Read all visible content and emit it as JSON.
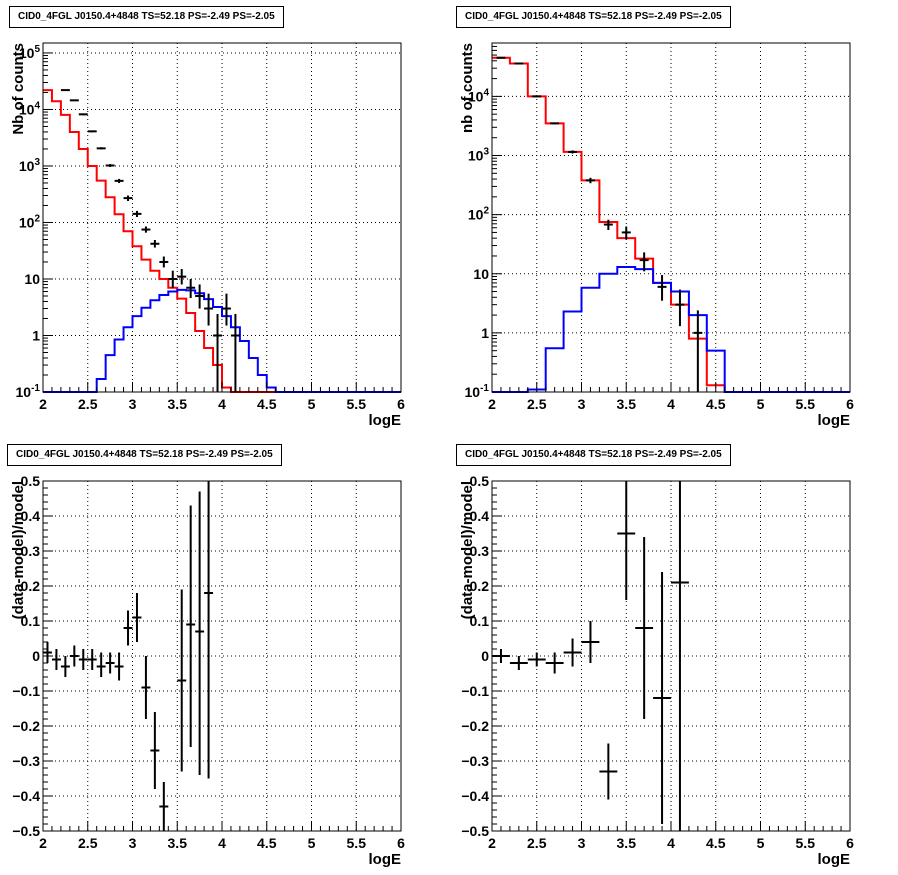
{
  "chart_data": [
    {
      "type": "histogram",
      "title": "CID0_4FGL J0150.4+4848 TS=52.18 PS=-2.49 PS=-2.05",
      "xlabel": "logE",
      "ylabel": "Nb of counts",
      "xlim": [
        2,
        6
      ],
      "ylim": [
        0.1,
        150000
      ],
      "log_y": true,
      "grid": true,
      "x_ticks": [
        "2",
        "2.5",
        "3",
        "3.5",
        "4",
        "4.5",
        "5",
        "5.5",
        "6"
      ],
      "y_ticks": [
        {
          "value": 0.1,
          "label": "10",
          "exp": "-1"
        },
        {
          "value": 1,
          "label": "1"
        },
        {
          "value": 10,
          "label": "10"
        },
        {
          "value": 100,
          "label": "10",
          "exp": "2"
        },
        {
          "value": 1000,
          "label": "10",
          "exp": "3"
        },
        {
          "value": 10000,
          "label": "10",
          "exp": "4"
        },
        {
          "value": 100000,
          "label": "10",
          "exp": "5"
        }
      ],
      "bin_edges": [
        2.0,
        2.1,
        2.2,
        2.3,
        2.4,
        2.5,
        2.6,
        2.7,
        2.8,
        2.9,
        3.0,
        3.1,
        3.2,
        3.3,
        3.4,
        3.5,
        3.6,
        3.7,
        3.8,
        3.9,
        4.0,
        4.1,
        4.2,
        4.3,
        4.4,
        4.5,
        4.6,
        4.7,
        4.8,
        4.9,
        5.0,
        5.1,
        5.2,
        5.3,
        5.4,
        5.5,
        5.6,
        5.7,
        5.8,
        5.9,
        6.0
      ],
      "series": [
        {
          "color": "#ff0000",
          "style": "step",
          "values": [
            22000,
            14000,
            8000,
            4000,
            2000,
            1000,
            550,
            280,
            140,
            70,
            38,
            22,
            14,
            10,
            7,
            4.5,
            2.5,
            1.2,
            0.6,
            0.3,
            0.12,
            0.1,
            0.1,
            0.1,
            0.1,
            0.1,
            0.1,
            0.1,
            0.1,
            0.1,
            0.1,
            0.1,
            0.1,
            0.1,
            0.1,
            0.1,
            0.1,
            0.1,
            0.1,
            0.1
          ]
        },
        {
          "color": "#0000ff",
          "style": "step",
          "values": [
            0.1,
            0.1,
            0.1,
            0.1,
            0.1,
            0.1,
            0.17,
            0.45,
            0.85,
            1.4,
            2.2,
            3.1,
            4.2,
            5.2,
            6.0,
            6.4,
            6.3,
            5.6,
            4.4,
            3.2,
            2.2,
            1.4,
            0.8,
            0.4,
            0.2,
            0.12,
            0.1,
            0.1,
            0.1,
            0.1,
            0.1,
            0.1,
            0.1,
            0.1,
            0.1,
            0.1,
            0.1,
            0.1,
            0.1,
            0.1
          ]
        },
        {
          "color": "#000000",
          "style": "errorbar",
          "points": [
            {
              "x": 2.05,
              "y": 22000,
              "lo": 21500,
              "hi": 22500
            },
            {
              "x": 2.15,
              "y": 14500,
              "lo": 14100,
              "hi": 14900
            },
            {
              "x": 2.25,
              "y": 8200,
              "lo": 7900,
              "hi": 8500
            },
            {
              "x": 2.35,
              "y": 4100,
              "lo": 3950,
              "hi": 4250
            },
            {
              "x": 2.45,
              "y": 2050,
              "lo": 1960,
              "hi": 2140
            },
            {
              "x": 2.55,
              "y": 1020,
              "lo": 960,
              "hi": 1080
            },
            {
              "x": 2.65,
              "y": 545,
              "lo": 500,
              "hi": 590
            },
            {
              "x": 2.75,
              "y": 270,
              "lo": 240,
              "hi": 300
            },
            {
              "x": 2.85,
              "y": 142,
              "lo": 125,
              "hi": 160
            },
            {
              "x": 2.95,
              "y": 75,
              "lo": 66,
              "hi": 85
            },
            {
              "x": 3.05,
              "y": 42,
              "lo": 36,
              "hi": 49
            },
            {
              "x": 3.15,
              "y": 20,
              "lo": 16,
              "hi": 25
            },
            {
              "x": 3.25,
              "y": 10,
              "lo": 7,
              "hi": 14
            },
            {
              "x": 3.35,
              "y": 11,
              "lo": 8,
              "hi": 15
            },
            {
              "x": 3.45,
              "y": 7,
              "lo": 4.6,
              "hi": 10
            },
            {
              "x": 3.55,
              "y": 5,
              "lo": 3,
              "hi": 8
            },
            {
              "x": 3.65,
              "y": 3,
              "lo": 1.5,
              "hi": 5.5
            },
            {
              "x": 3.75,
              "y": 1,
              "lo": 0.1,
              "hi": 2.4
            },
            {
              "x": 3.85,
              "y": 3,
              "lo": 1.5,
              "hi": 5.5
            },
            {
              "x": 3.95,
              "y": 1,
              "lo": 0.1,
              "hi": 2.4
            }
          ],
          "x_shift": 0.2
        }
      ]
    },
    {
      "type": "histogram",
      "title": "CID0_4FGL J0150.4+4848 TS=52.18 PS=-2.49 PS=-2.05",
      "xlabel": "logE",
      "ylabel": "nb of counts",
      "xlim": [
        2,
        6
      ],
      "ylim": [
        0.1,
        80000
      ],
      "log_y": true,
      "grid": true,
      "x_ticks": [
        "2",
        "2.5",
        "3",
        "3.5",
        "4",
        "4.5",
        "5",
        "5.5",
        "6"
      ],
      "y_ticks": [
        {
          "value": 0.1,
          "label": "10",
          "exp": "-1"
        },
        {
          "value": 1,
          "label": "1"
        },
        {
          "value": 10,
          "label": "10"
        },
        {
          "value": 100,
          "label": "10",
          "exp": "2"
        },
        {
          "value": 1000,
          "label": "10",
          "exp": "3"
        },
        {
          "value": 10000,
          "label": "10",
          "exp": "4"
        }
      ],
      "bin_edges": [
        2.0,
        2.2,
        2.4,
        2.6,
        2.8,
        3.0,
        3.2,
        3.4,
        3.6,
        3.8,
        4.0,
        4.2,
        4.4,
        4.6,
        4.8,
        5.0,
        5.2,
        5.4,
        5.6,
        5.8,
        6.0
      ],
      "series": [
        {
          "color": "#ff0000",
          "style": "step",
          "values": [
            45000,
            36000,
            10000,
            3500,
            1150,
            380,
            75,
            40,
            18,
            7,
            3,
            0.8,
            0.13,
            0.1,
            0.1,
            0.1,
            0.1,
            0.1,
            0.1,
            0.1
          ]
        },
        {
          "color": "#0000ff",
          "style": "step",
          "values": [
            0.1,
            0.1,
            0.11,
            0.55,
            2.3,
            5.8,
            10,
            13,
            12,
            7,
            5,
            2,
            0.5,
            0.1,
            0.1,
            0.1,
            0.1,
            0.1,
            0.1,
            0.1
          ]
        },
        {
          "color": "#000000",
          "style": "errorbar",
          "points": [
            {
              "x": 2.1,
              "y": 45000,
              "lo": 44500,
              "hi": 45500
            },
            {
              "x": 2.3,
              "y": 36000,
              "lo": 35600,
              "hi": 36400
            },
            {
              "x": 2.5,
              "y": 10000,
              "lo": 9800,
              "hi": 10200
            },
            {
              "x": 2.7,
              "y": 3500,
              "lo": 3380,
              "hi": 3620
            },
            {
              "x": 2.9,
              "y": 1150,
              "lo": 1080,
              "hi": 1220
            },
            {
              "x": 3.1,
              "y": 380,
              "lo": 340,
              "hi": 420
            },
            {
              "x": 3.3,
              "y": 68,
              "lo": 55,
              "hi": 82
            },
            {
              "x": 3.5,
              "y": 50,
              "lo": 38,
              "hi": 63
            },
            {
              "x": 3.7,
              "y": 17,
              "lo": 11,
              "hi": 23
            },
            {
              "x": 3.9,
              "y": 6,
              "lo": 3.5,
              "hi": 9.5
            },
            {
              "x": 4.1,
              "y": 3,
              "lo": 1.3,
              "hi": 5.4
            },
            {
              "x": 4.3,
              "y": 1,
              "lo": 0.1,
              "hi": 2.4
            }
          ],
          "x_shift": 0
        }
      ]
    },
    {
      "type": "scatter",
      "title": "CID0_4FGL J0150.4+4848 TS=52.18 PS=-2.49 PS=-2.05",
      "xlabel": "logE",
      "ylabel": "(data-model)/model",
      "xlim": [
        2,
        6
      ],
      "ylim": [
        -0.5,
        0.5
      ],
      "log_y": false,
      "grid": true,
      "x_ticks": [
        "2",
        "2.5",
        "3",
        "3.5",
        "4",
        "4.5",
        "5",
        "5.5",
        "6"
      ],
      "y_ticks": [
        {
          "value": -0.5,
          "label": "−0.5"
        },
        {
          "value": -0.4,
          "label": "−0.4"
        },
        {
          "value": -0.3,
          "label": "−0.3"
        },
        {
          "value": -0.2,
          "label": "−0.2"
        },
        {
          "value": -0.1,
          "label": "−0.1"
        },
        {
          "value": 0,
          "label": "0"
        },
        {
          "value": 0.1,
          "label": "0.1"
        },
        {
          "value": 0.2,
          "label": "0.2"
        },
        {
          "value": 0.3,
          "label": "0.3"
        },
        {
          "value": 0.4,
          "label": "0.4"
        },
        {
          "value": 0.5,
          "label": "0.5"
        }
      ],
      "series": [
        {
          "color": "#000000",
          "style": "errorbar",
          "xerr": 0.05,
          "points": [
            {
              "x": 2.05,
              "y": 0.01,
              "lo": -0.02,
              "hi": 0.04
            },
            {
              "x": 2.15,
              "y": -0.01,
              "lo": -0.04,
              "hi": 0.02
            },
            {
              "x": 2.25,
              "y": -0.03,
              "lo": -0.06,
              "hi": 0.0
            },
            {
              "x": 2.35,
              "y": 0.0,
              "lo": -0.03,
              "hi": 0.03
            },
            {
              "x": 2.45,
              "y": -0.01,
              "lo": -0.04,
              "hi": 0.02
            },
            {
              "x": 2.55,
              "y": -0.01,
              "lo": -0.04,
              "hi": 0.02
            },
            {
              "x": 2.65,
              "y": -0.03,
              "lo": -0.06,
              "hi": 0.01
            },
            {
              "x": 2.75,
              "y": -0.02,
              "lo": -0.05,
              "hi": 0.01
            },
            {
              "x": 2.85,
              "y": -0.03,
              "lo": -0.07,
              "hi": 0.01
            },
            {
              "x": 2.95,
              "y": 0.08,
              "lo": 0.03,
              "hi": 0.13
            },
            {
              "x": 3.05,
              "y": 0.11,
              "lo": 0.04,
              "hi": 0.18
            },
            {
              "x": 3.15,
              "y": -0.09,
              "lo": -0.18,
              "hi": 0.0
            },
            {
              "x": 3.25,
              "y": -0.27,
              "lo": -0.38,
              "hi": -0.16
            },
            {
              "x": 3.35,
              "y": -0.43,
              "lo": -0.5,
              "hi": -0.36
            },
            {
              "x": 3.55,
              "y": -0.07,
              "lo": -0.33,
              "hi": 0.19
            },
            {
              "x": 3.65,
              "y": 0.09,
              "lo": -0.26,
              "hi": 0.43
            },
            {
              "x": 3.75,
              "y": 0.07,
              "lo": -0.34,
              "hi": 0.47
            },
            {
              "x": 3.85,
              "y": 0.18,
              "lo": -0.35,
              "hi": 0.5
            }
          ]
        }
      ]
    },
    {
      "type": "scatter",
      "title": "CID0_4FGL J0150.4+4848 TS=52.18 PS=-2.49 PS=-2.05",
      "xlabel": "logE",
      "ylabel": "(data-model)/model",
      "xlim": [
        2,
        6
      ],
      "ylim": [
        -0.5,
        0.5
      ],
      "log_y": false,
      "grid": true,
      "x_ticks": [
        "2",
        "2.5",
        "3",
        "3.5",
        "4",
        "4.5",
        "5",
        "5.5",
        "6"
      ],
      "y_ticks": [
        {
          "value": -0.5,
          "label": "−0.5"
        },
        {
          "value": -0.4,
          "label": "−0.4"
        },
        {
          "value": -0.3,
          "label": "−0.3"
        },
        {
          "value": -0.2,
          "label": "−0.2"
        },
        {
          "value": -0.1,
          "label": "−0.1"
        },
        {
          "value": 0,
          "label": "0"
        },
        {
          "value": 0.1,
          "label": "0.1"
        },
        {
          "value": 0.2,
          "label": "0.2"
        },
        {
          "value": 0.3,
          "label": "0.3"
        },
        {
          "value": 0.4,
          "label": "0.4"
        },
        {
          "value": 0.5,
          "label": "0.5"
        }
      ],
      "series": [
        {
          "color": "#000000",
          "style": "errorbar",
          "xerr": 0.1,
          "points": [
            {
              "x": 2.1,
              "y": 0.0,
              "lo": -0.02,
              "hi": 0.02
            },
            {
              "x": 2.3,
              "y": -0.02,
              "lo": -0.04,
              "hi": 0.0
            },
            {
              "x": 2.5,
              "y": -0.01,
              "lo": -0.03,
              "hi": 0.01
            },
            {
              "x": 2.7,
              "y": -0.02,
              "lo": -0.05,
              "hi": 0.01
            },
            {
              "x": 2.9,
              "y": 0.01,
              "lo": -0.03,
              "hi": 0.05
            },
            {
              "x": 3.1,
              "y": 0.04,
              "lo": -0.02,
              "hi": 0.1
            },
            {
              "x": 3.3,
              "y": -0.33,
              "lo": -0.41,
              "hi": -0.25
            },
            {
              "x": 3.5,
              "y": 0.35,
              "lo": 0.16,
              "hi": 0.5
            },
            {
              "x": 3.7,
              "y": 0.08,
              "lo": -0.18,
              "hi": 0.34
            },
            {
              "x": 3.9,
              "y": -0.12,
              "lo": -0.48,
              "hi": 0.24
            },
            {
              "x": 4.1,
              "y": 0.21,
              "lo": -0.5,
              "hi": 0.5
            }
          ]
        }
      ]
    }
  ]
}
